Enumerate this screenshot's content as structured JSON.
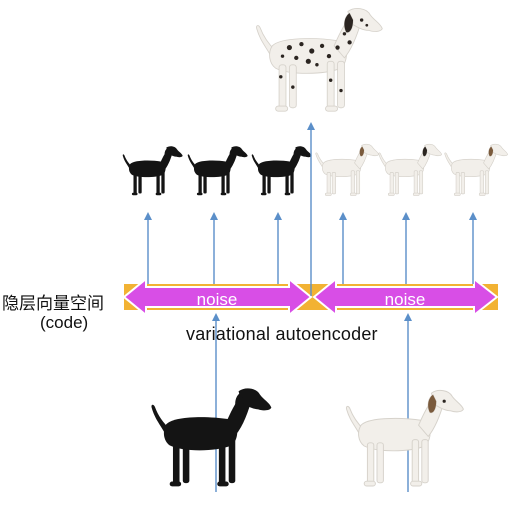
{
  "diagram": {
    "code_label_cn": "隐层向量空间",
    "code_label_en": "(code)",
    "noise_left": "noise",
    "noise_right": "noise",
    "vae_label": "variational autoencoder",
    "colors": {
      "latent_bar": "#f2b233",
      "noise_arrow": "#d84ee6",
      "noise_stroke": "#ffffff",
      "flow_arrow": "#5b8fc9",
      "black_dog": "#141414",
      "white_dog": "#f2efea",
      "spot": "#2b2521",
      "ear": "#7a5a3c"
    },
    "icons": {
      "input_left": "black-dog-icon",
      "input_right": "white-dog-icon",
      "output_top": "dalmatian-dog-icon",
      "generated": "small-dog-icon"
    }
  }
}
